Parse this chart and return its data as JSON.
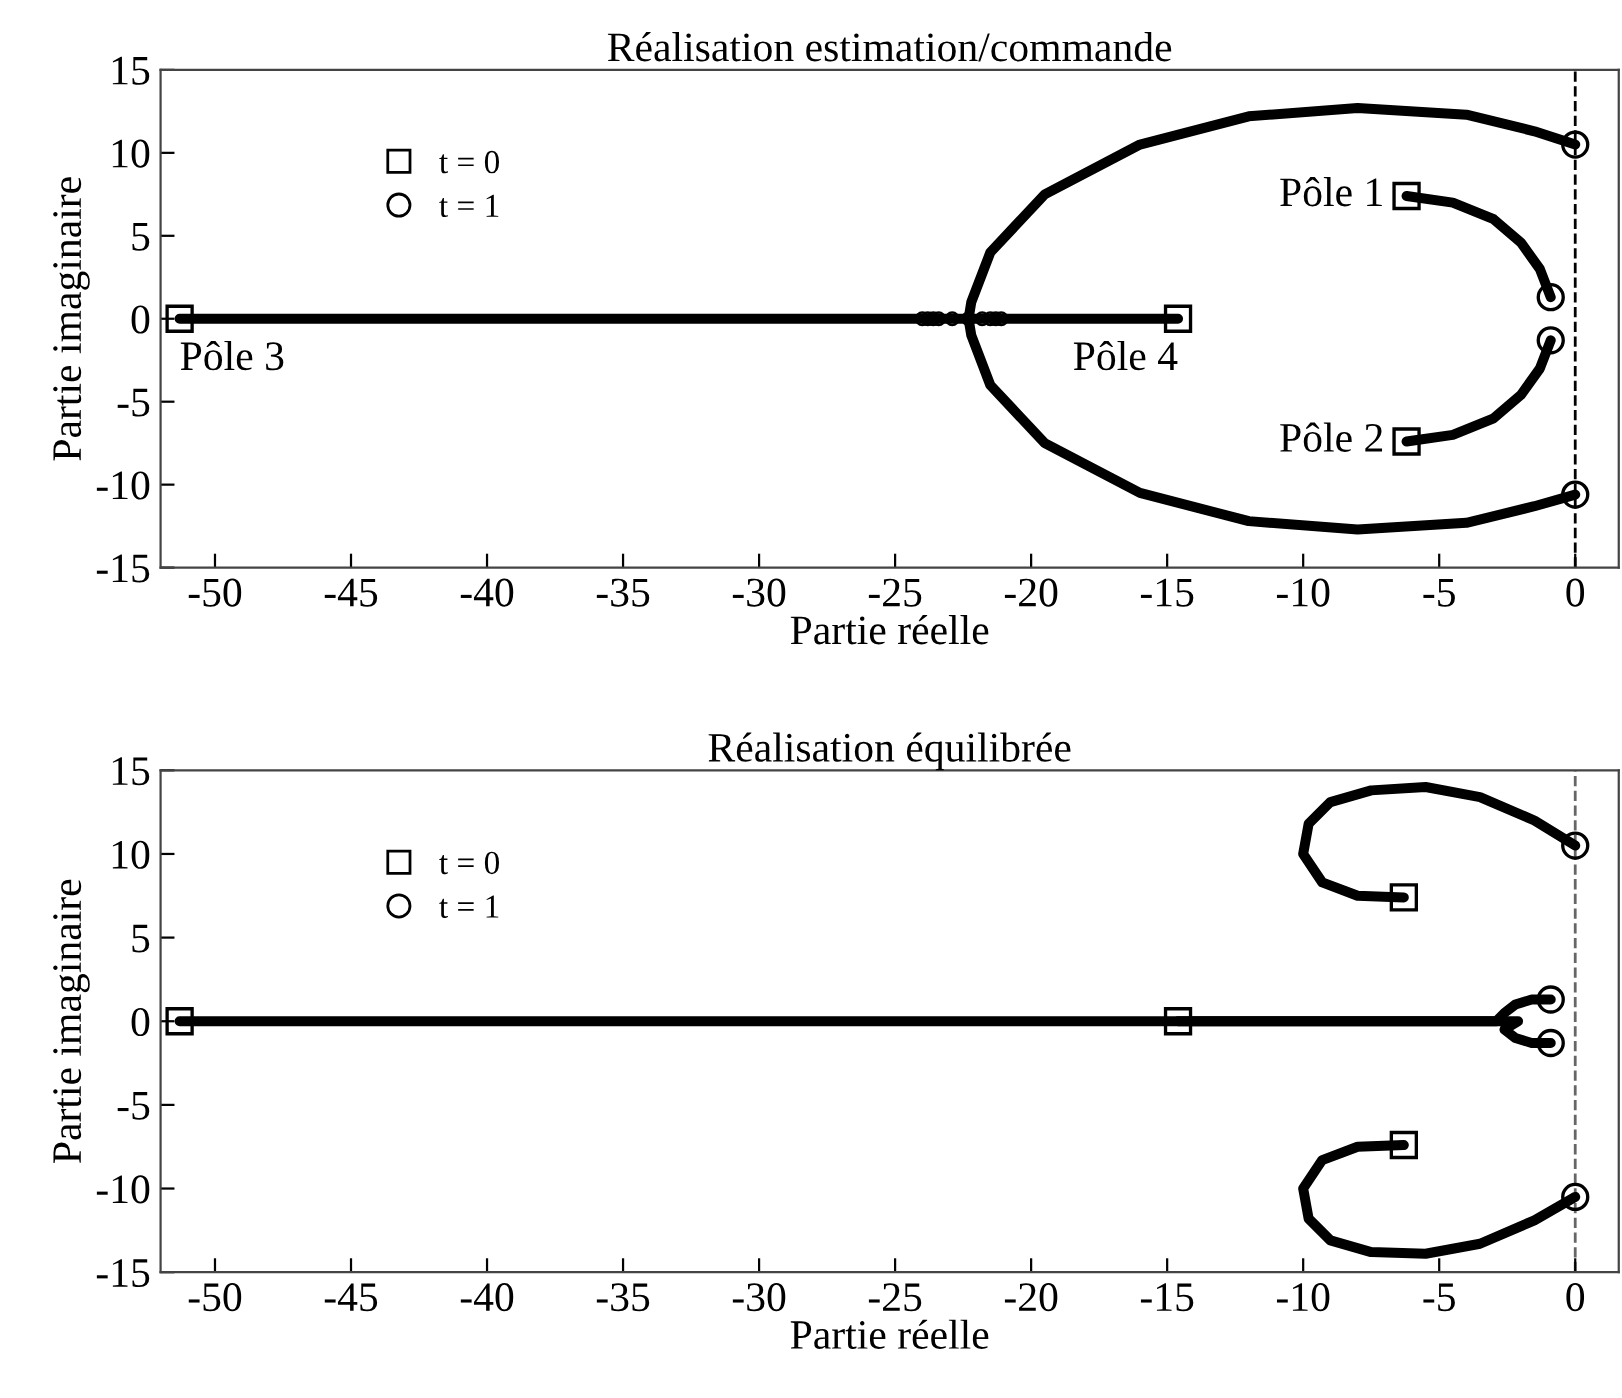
{
  "chart_data": [
    {
      "type": "line",
      "title": "Réalisation estimation/commande",
      "xlabel": "Partie réelle",
      "ylabel": "Partie imaginaire",
      "xlim": [
        -52,
        1.6
      ],
      "ylim": [
        -15,
        15
      ],
      "xticks": [
        -50,
        -45,
        -40,
        -35,
        -30,
        -25,
        -20,
        -15,
        -10,
        -5,
        0
      ],
      "yticks": [
        -15,
        -10,
        -5,
        0,
        5,
        10,
        15
      ],
      "grid": false,
      "legend": "top left",
      "series": [
        {
          "color": "#000000",
          "x": [
            -6.2,
            -4.5,
            -3,
            -2,
            -1.3,
            -0.9
          ],
          "values": [
            7.4,
            7,
            6,
            4.6,
            3,
            1.3
          ]
        },
        {
          "color": "#000000",
          "x": [
            -6.2,
            -4.5,
            -3,
            -2,
            -1.3,
            -0.9
          ],
          "values": [
            -7.4,
            -7,
            -6,
            -4.6,
            -3,
            -1.3
          ]
        },
        {
          "color": "#000000",
          "x": [
            -51.3,
            -22.3,
            -22.2,
            -21.5,
            -19.5,
            -16,
            -12,
            -8,
            -4,
            -1.5,
            0
          ],
          "values": [
            0,
            0,
            1,
            4,
            7.5,
            10.5,
            12.2,
            12.7,
            12.3,
            11.3,
            10.5
          ]
        },
        {
          "color": "#000000",
          "x": [
            -14.6,
            -22.3,
            -22.2,
            -21.5,
            -19.5,
            -16,
            -12,
            -8,
            -4,
            -1.5,
            0
          ],
          "values": [
            0,
            0,
            -1,
            -4,
            -7.5,
            -10.5,
            -12.2,
            -12.7,
            -12.3,
            -11.3,
            -10.6
          ]
        },
        {
          "type": "scatter",
          "marker": "circle",
          "color": "#000000",
          "x": [
            -24,
            -23.8,
            -23.6,
            -23.4,
            -22.9,
            -22.3,
            -21.8,
            -21.5,
            -21.3,
            -21.1
          ],
          "values": [
            0,
            0,
            0,
            0,
            0,
            0,
            0,
            0,
            0,
            0
          ]
        },
        {
          "type": "scatter",
          "marker": "square",
          "name": "t = 0",
          "color": "#000000",
          "x": [
            -6.2,
            -6.2,
            -51.3,
            -14.6
          ],
          "values": [
            7.4,
            -7.4,
            0,
            0
          ]
        },
        {
          "type": "scatter",
          "marker": "circle",
          "name": "t = 1",
          "color": "#000000",
          "x": [
            -0.9,
            -0.9,
            0,
            0
          ],
          "values": [
            1.3,
            -1.3,
            10.5,
            -10.6
          ]
        }
      ],
      "ref_lines": [
        {
          "axis": "x",
          "value": 0,
          "color": "#000000",
          "line_style": "dashed"
        }
      ],
      "annotations": [
        {
          "text": "Pôle 1",
          "x": -6.2,
          "y": 7.4
        },
        {
          "text": "Pôle 2",
          "x": -6.2,
          "y": -7.4
        },
        {
          "text": "Pôle 3",
          "x": -51.3,
          "y": 0
        },
        {
          "text": "Pôle 4",
          "x": -14.6,
          "y": 0
        }
      ]
    },
    {
      "type": "line",
      "title": "Réalisation équilibrée",
      "xlabel": "Partie réelle",
      "ylabel": "Partie imaginaire",
      "xlim": [
        -52,
        1.6
      ],
      "ylim": [
        -15,
        15
      ],
      "xticks": [
        -50,
        -45,
        -40,
        -35,
        -30,
        -25,
        -20,
        -15,
        -10,
        -5,
        0
      ],
      "yticks": [
        -15,
        -10,
        -5,
        0,
        5,
        10,
        15
      ],
      "grid": false,
      "legend": "top left",
      "series": [
        {
          "color": "#000000",
          "x": [
            -6.3,
            -8,
            -9.3,
            -10,
            -9.8,
            -9,
            -7.5,
            -5.5,
            -3.5,
            -1.5,
            0
          ],
          "values": [
            7.4,
            7.5,
            8.3,
            10,
            11.8,
            13.1,
            13.8,
            14,
            13.4,
            12,
            10.5
          ]
        },
        {
          "color": "#000000",
          "x": [
            -6.3,
            -8,
            -9.3,
            -10,
            -9.8,
            -9,
            -7.5,
            -5.5,
            -3.5,
            -1.5,
            0
          ],
          "values": [
            -7.4,
            -7.5,
            -8.3,
            -10,
            -11.8,
            -13.1,
            -13.8,
            -13.9,
            -13.3,
            -11.9,
            -10.5
          ]
        },
        {
          "color": "#000000",
          "x": [
            -51.3,
            -2.9,
            -2.6,
            -2.2,
            -1.6,
            -0.9
          ],
          "values": [
            0,
            0,
            0.5,
            1,
            1.3,
            1.3
          ]
        },
        {
          "color": "#000000",
          "x": [
            -14.6,
            -2.1,
            -2.6,
            -2.2,
            -1.6,
            -0.9
          ],
          "values": [
            0,
            0,
            -0.5,
            -1,
            -1.3,
            -1.3
          ]
        },
        {
          "type": "scatter",
          "marker": "square",
          "name": "t = 0",
          "color": "#000000",
          "x": [
            -6.3,
            -6.3,
            -51.3,
            -14.6
          ],
          "values": [
            7.4,
            -7.4,
            0,
            0
          ]
        },
        {
          "type": "scatter",
          "marker": "circle",
          "name": "t = 1",
          "color": "#000000",
          "x": [
            -0.9,
            -0.9,
            0,
            0
          ],
          "values": [
            1.3,
            -1.3,
            10.5,
            -10.5
          ]
        }
      ],
      "ref_lines": [
        {
          "axis": "x",
          "value": 0,
          "color": "#666666",
          "line_style": "dashed"
        }
      ]
    }
  ]
}
